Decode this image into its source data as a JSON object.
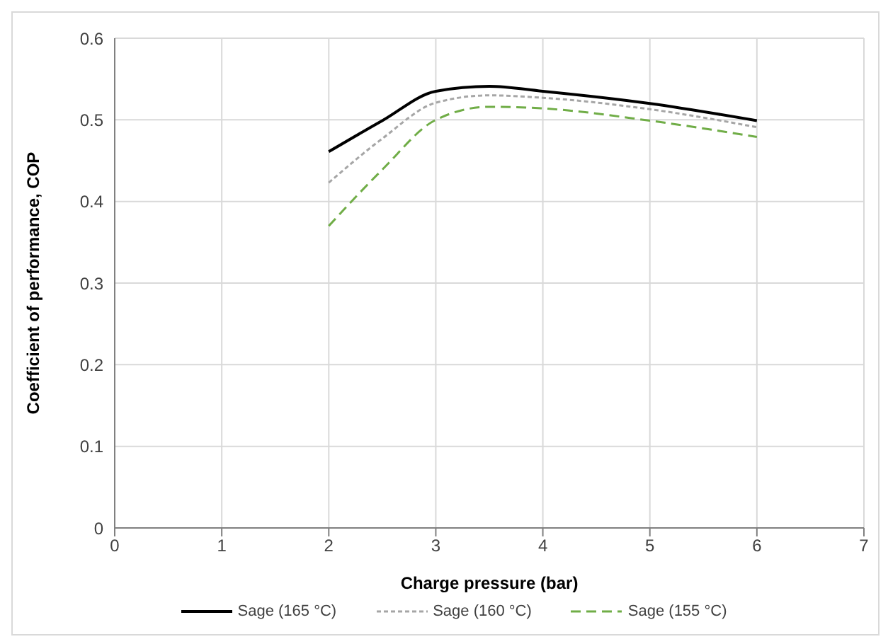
{
  "chart_data": {
    "type": "line",
    "xlabel": "Charge pressure (bar)",
    "ylabel": "Coefficient of performance, COP",
    "x": [
      2,
      2.5,
      3,
      3.5,
      4,
      5,
      6
    ],
    "series": [
      {
        "name": "Sage (165 °C)",
        "color": "#000000",
        "line_style": "solid",
        "values": [
          0.461,
          0.499,
          0.535,
          0.541,
          0.535,
          0.52,
          0.499
        ]
      },
      {
        "name": "Sage (160 °C)",
        "color": "#a6a6a6",
        "line_style": "dotted",
        "values": [
          0.423,
          0.477,
          0.521,
          0.53,
          0.527,
          0.513,
          0.491
        ]
      },
      {
        "name": "Sage (155 °C)",
        "color": "#70ad47",
        "line_style": "dashed",
        "values": [
          0.37,
          0.439,
          0.5,
          0.516,
          0.514,
          0.499,
          0.479
        ]
      }
    ],
    "xlim": [
      0,
      7
    ],
    "xticks": [
      0,
      1,
      2,
      3,
      4,
      5,
      6,
      7
    ],
    "ylim": [
      0,
      0.6
    ],
    "yticks": [
      0,
      0.1,
      0.2,
      0.3,
      0.4,
      0.5,
      0.6
    ],
    "grid": true,
    "legend": "bottom",
    "marker": "none"
  }
}
